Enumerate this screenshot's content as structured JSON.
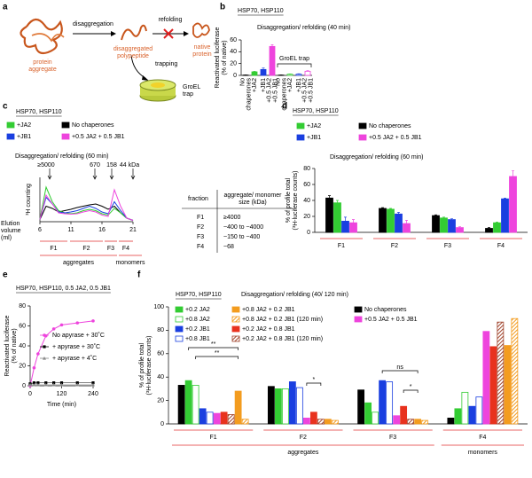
{
  "panels": [
    "a",
    "b",
    "c",
    "d",
    "e",
    "f"
  ],
  "diagram": {
    "steps": [
      "disaggregation",
      "refolding",
      "trapping"
    ],
    "nodes": [
      [
        "protein",
        "aggregate"
      ],
      [
        "disaggregated",
        "polypeptide"
      ],
      [
        "native",
        "protein"
      ],
      [
        "GroEL",
        "trap"
      ]
    ]
  },
  "table": {
    "header": [
      [
        "fraction"
      ],
      [
        "aggregate/ monomer",
        "size (kDa)"
      ]
    ],
    "rows": [
      [
        "F1",
        "≥4000"
      ],
      [
        "F2",
        "~400 to ~4000"
      ],
      [
        "F3",
        "~150 to ~400"
      ],
      [
        "F4",
        "~68"
      ]
    ]
  },
  "chart_data": [
    {
      "type": "bar",
      "title": "HSP70, HSP110",
      "subtitle": "Disaggregation/ refolding (40 min)",
      "ylabel": [
        "Reactivated luciferase",
        "(% of native)"
      ],
      "categories": [
        [
          "No",
          "chaperones"
        ],
        [
          "+JA2"
        ],
        [
          "+JB1"
        ],
        [
          "+0.5 JA2",
          "+0.5 JB1"
        ],
        [
          "No",
          "chaperones"
        ],
        [
          "+JA2"
        ],
        [
          "+JB1"
        ],
        [
          "+0.5 JA2",
          "+0.5 JB1"
        ]
      ],
      "values": [
        0.5,
        6,
        10,
        49,
        0.5,
        2,
        2,
        7
      ],
      "errors": [
        0.3,
        0.8,
        2.5,
        3,
        0.3,
        0.5,
        0.6,
        1
      ],
      "colors": [
        "#000000",
        "#33cc33",
        "#1a3fe0",
        "#ee44dd",
        "#000000",
        "#33cc33",
        "#1a3fe0",
        "#ee44dd"
      ],
      "styles": [
        "solid",
        "solid",
        "solid",
        "solid",
        "outline",
        "outline",
        "outline",
        "outline"
      ],
      "ylim": [
        0,
        60
      ],
      "yticks": [
        0,
        20,
        40,
        60
      ],
      "annotations": [
        "GroEL trap"
      ]
    },
    {
      "type": "line",
      "title": "HSP70, HSP110",
      "subtitle": "Disaggregation/ refolding (60 min)",
      "ylabel": "³H counting",
      "xlabel": [
        "Elution",
        "volume",
        "(ml)"
      ],
      "x": [
        6,
        7,
        8,
        9,
        10,
        11,
        12,
        13,
        14,
        15,
        16,
        17,
        18,
        19,
        20,
        21
      ],
      "series": [
        {
          "name": "No chaperones",
          "color": "#000000",
          "values": [
            5,
            35,
            30,
            22,
            25,
            28,
            32,
            35,
            38,
            40,
            35,
            28,
            35,
            20,
            8,
            3
          ]
        },
        {
          "name": "+JA2",
          "color": "#33cc33",
          "values": [
            5,
            78,
            45,
            25,
            20,
            18,
            20,
            25,
            28,
            25,
            18,
            15,
            30,
            20,
            8,
            3
          ]
        },
        {
          "name": "+JB1",
          "color": "#1a3fe0",
          "values": [
            5,
            55,
            40,
            22,
            20,
            22,
            25,
            30,
            35,
            30,
            22,
            18,
            45,
            25,
            8,
            3
          ]
        },
        {
          "name": "+0.5 JA2 + 0.5 JB1",
          "color": "#ee44dd",
          "values": [
            5,
            60,
            40,
            20,
            18,
            17,
            18,
            22,
            25,
            22,
            15,
            12,
            72,
            35,
            8,
            3
          ]
        }
      ],
      "xlim": [
        6,
        21
      ],
      "xticks": [
        6,
        11,
        16,
        21
      ],
      "ylim": [
        0,
        100
      ],
      "annotations": [
        "≥5000",
        "670",
        "158",
        "44 kDa"
      ],
      "fractions": [
        "F1",
        "F2",
        "F3",
        "F4"
      ],
      "fraction_groups": [
        "aggregates",
        "monomers"
      ]
    },
    {
      "type": "bar",
      "title": "HSP70, HSP110",
      "subtitle": "Disaggregation/ refolding (60 min)",
      "ylabel": [
        "% of profile total",
        "(³H-luciferase counts)"
      ],
      "categories": [
        "F1",
        "F2",
        "F3",
        "F4"
      ],
      "series": [
        {
          "name": "No chaperones",
          "color": "#000000",
          "values": [
            43,
            30,
            21,
            5
          ],
          "errors": [
            3,
            1,
            1,
            1
          ]
        },
        {
          "name": "+JA2",
          "color": "#33cc33",
          "values": [
            37,
            29,
            18,
            12
          ],
          "errors": [
            3,
            1,
            1,
            1
          ]
        },
        {
          "name": "+JB1",
          "color": "#1a3fe0",
          "values": [
            14,
            23,
            16,
            42
          ],
          "errors": [
            5,
            2,
            1,
            1
          ]
        },
        {
          "name": "+0.5 JA2 + 0.5 JB1",
          "color": "#ee44dd",
          "values": [
            12,
            11,
            6,
            70
          ],
          "errors": [
            4,
            4,
            1,
            7
          ]
        }
      ],
      "ylim": [
        0,
        80
      ],
      "yticks": [
        0,
        20,
        40,
        60,
        80
      ]
    },
    {
      "type": "line",
      "title": "HSP70, HSP110, 0.5 JA2, 0.5 JB1",
      "ylabel": [
        "Reactivated luciferase",
        "(% of native)"
      ],
      "xlabel": "Time (min)",
      "x": [
        0,
        15,
        30,
        60,
        90,
        120,
        180,
        240
      ],
      "series": [
        {
          "name": "No apyrase + 30˚C",
          "color": "#ee44dd",
          "marker": "circle",
          "values": [
            0,
            18,
            32,
            50,
            57,
            61,
            63,
            65
          ]
        },
        {
          "name": "+ apyrase + 30˚C",
          "color": "#000000",
          "marker": "square",
          "values": [
            2,
            3,
            3,
            3,
            3,
            3,
            3,
            3
          ]
        },
        {
          "name": "+ apyrase + 4˚C",
          "color": "#888888",
          "marker": "triangle",
          "values": [
            1,
            1,
            1,
            1,
            1,
            1,
            1,
            1
          ]
        }
      ],
      "xlim": [
        0,
        240
      ],
      "xticks": [
        0,
        120,
        240
      ],
      "ylim": [
        0,
        80
      ],
      "yticks": [
        0,
        20,
        40,
        60,
        80
      ]
    },
    {
      "type": "bar",
      "title": "HSP70, HSP110",
      "subtitle": "Disaggregation/ refolding (40/ 120 min)",
      "ylabel": [
        "% of profile total",
        "(³H-luciferase counts)"
      ],
      "categories": [
        "F1",
        "F2",
        "F3",
        "F4"
      ],
      "series": [
        {
          "name": "No chaperones",
          "color": "#000000",
          "style": "solid",
          "values": [
            33,
            32,
            29,
            5
          ]
        },
        {
          "name": "+0.2 JA2",
          "color": "#33cc33",
          "style": "solid",
          "values": [
            37,
            30,
            18,
            13
          ]
        },
        {
          "name": "+0.8 JA2",
          "color": "#33cc33",
          "style": "outline",
          "values": [
            33,
            30,
            10,
            27
          ]
        },
        {
          "name": "+0.2 JB1",
          "color": "#1a3fe0",
          "style": "solid",
          "values": [
            13,
            36,
            37,
            15
          ]
        },
        {
          "name": "+0.8 JB1",
          "color": "#1a3fe0",
          "style": "outline",
          "values": [
            10,
            31,
            36,
            23
          ]
        },
        {
          "name": "+0.5 JA2 + 0.5 JB1",
          "color": "#ee44dd",
          "style": "solid",
          "values": [
            9,
            5,
            7,
            79
          ]
        },
        {
          "name": "+0.2 JA2 + 0.8 JB1",
          "color": "#e8321e",
          "style": "solid",
          "values": [
            10,
            10,
            15,
            66
          ]
        },
        {
          "name": "+0.2 JA2 + 0.8 JB1 (120 min)",
          "color": "#a0442c",
          "style": "hatched",
          "values": [
            8,
            4,
            4,
            87
          ]
        },
        {
          "name": "+0.8 JA2 + 0.2 JB1",
          "color": "#f39c1f",
          "style": "solid",
          "values": [
            28,
            4,
            4,
            67
          ]
        },
        {
          "name": "+0.8 JA2 + 0.2 JB1 (120 min)",
          "color": "#f39c1f",
          "style": "hatched",
          "values": [
            4,
            3,
            3,
            90
          ]
        }
      ],
      "ylim": [
        0,
        100
      ],
      "yticks": [
        0,
        20,
        40,
        60,
        80,
        100
      ],
      "annotations": [
        "**",
        "**",
        "*",
        "ns",
        "*"
      ],
      "fraction_groups": [
        "aggregates",
        "monomers"
      ]
    }
  ]
}
